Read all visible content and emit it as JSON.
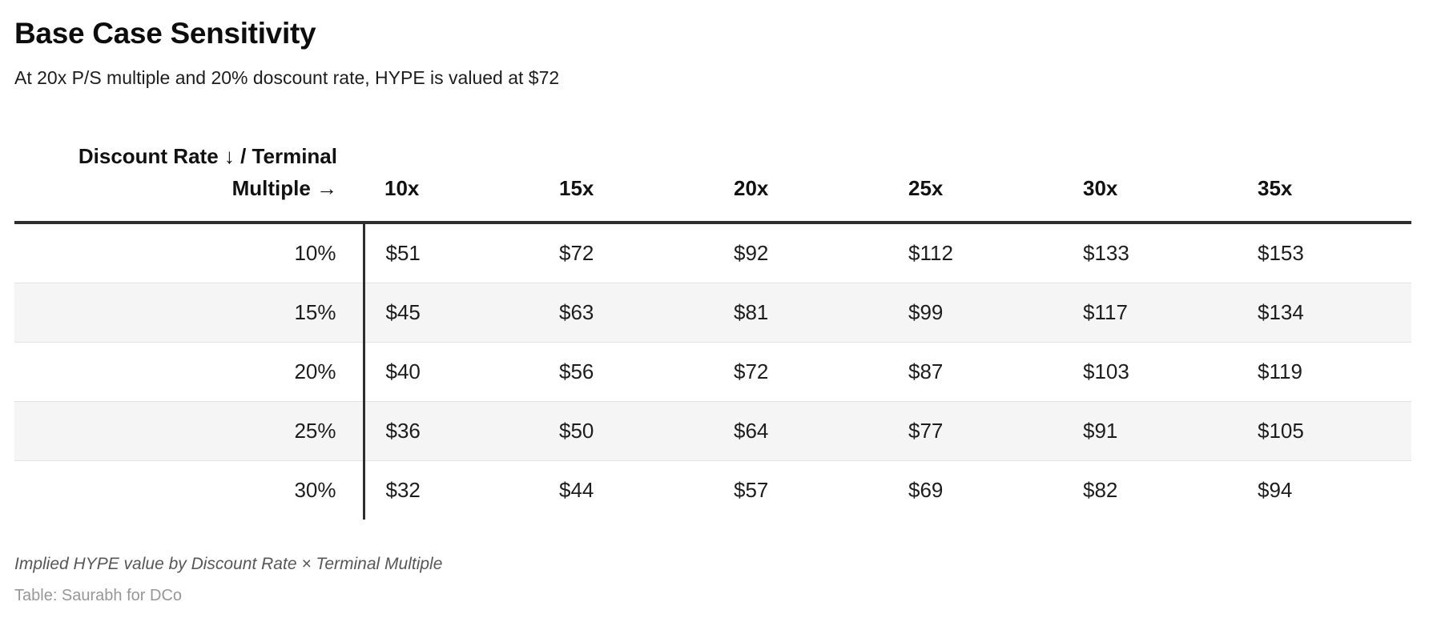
{
  "chart_data": {
    "type": "table",
    "title": "Base Case Sensitivity",
    "subtitle": "At 20x P/S multiple and 20% doscount rate, HYPE is valued at $72",
    "corner_header": "Discount Rate ↓ / Terminal Multiple →",
    "columns": [
      "10x",
      "15x",
      "20x",
      "25x",
      "30x",
      "35x"
    ],
    "rows": [
      {
        "label": "10%",
        "values": [
          "$51",
          "$72",
          "$92",
          "$112",
          "$133",
          "$153"
        ]
      },
      {
        "label": "15%",
        "values": [
          "$45",
          "$63",
          "$81",
          "$99",
          "$117",
          "$134"
        ]
      },
      {
        "label": "20%",
        "values": [
          "$40",
          "$56",
          "$72",
          "$87",
          "$103",
          "$119"
        ]
      },
      {
        "label": "25%",
        "values": [
          "$36",
          "$50",
          "$64",
          "$77",
          "$91",
          "$105"
        ]
      },
      {
        "label": "30%",
        "values": [
          "$32",
          "$44",
          "$57",
          "$69",
          "$82",
          "$94"
        ]
      }
    ],
    "note": "Implied HYPE value by Discount Rate × Terminal Multiple",
    "credit": "Table: Saurabh for DCo",
    "layout": {
      "zebra_striping": "rows 15% and 25%",
      "header_divider": "thick dark rule under header row",
      "row_label_divider": "thick dark vertical rule right of label column",
      "grid": "thin light gray horizontal rules between body rows"
    }
  },
  "colors": {
    "background": "#ffffff",
    "heading_text": "#0d0d0d",
    "body_text": "#1d1d1d",
    "stripe": "#f5f5f5",
    "row_divider": "#e3e3e3",
    "strong_divider": "#2e2e2e",
    "note_text": "#575757",
    "credit_text": "#979797"
  }
}
